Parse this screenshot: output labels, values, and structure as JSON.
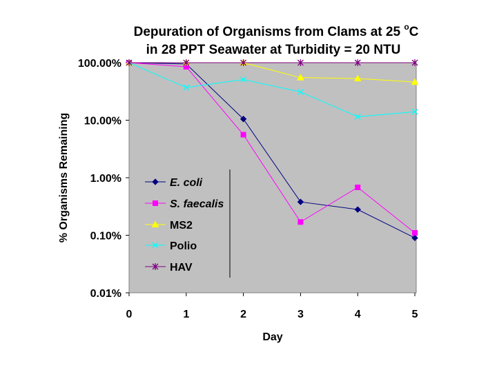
{
  "chart_data": {
    "type": "line",
    "title_line1": "Depuration of Organisms from Clams at 25 ",
    "title_degree": "o",
    "title_unit": "C",
    "title_line2": "in 28 PPT Seawater at Turbidity = 20 NTU",
    "xlabel": "Day",
    "ylabel": "% Organisms Remaining",
    "x": [
      0,
      1,
      2,
      3,
      4,
      5
    ],
    "y_scale": "log",
    "ylim": [
      0.01,
      100
    ],
    "y_ticks": [
      {
        "value": 100,
        "label": "100.00%"
      },
      {
        "value": 10,
        "label": "10.00%"
      },
      {
        "value": 1,
        "label": "1.00%"
      },
      {
        "value": 0.1,
        "label": "0.10%"
      },
      {
        "value": 0.01,
        "label": "0.01%"
      }
    ],
    "x_tick_labels": [
      "0",
      "1",
      "2",
      "3",
      "4",
      "5"
    ],
    "plot_background": "#c0c0c0",
    "series": [
      {
        "name": "E. coli",
        "italic": true,
        "color": "#000080",
        "marker": "diamond",
        "values": [
          100,
          95,
          10.5,
          0.38,
          0.28,
          0.09
        ]
      },
      {
        "name": "S. faecalis",
        "italic": true,
        "color": "#ff00ff",
        "marker": "square",
        "values": [
          100,
          85,
          5.6,
          0.17,
          0.68,
          0.11
        ]
      },
      {
        "name": "MS2",
        "italic": false,
        "color": "#ffff00",
        "marker": "triangle",
        "values": [
          100,
          100,
          100,
          55,
          53,
          46
        ]
      },
      {
        "name": "Polio",
        "italic": false,
        "color": "#00ffff",
        "marker": "x",
        "values": [
          100,
          37,
          51,
          31,
          11.5,
          14
        ]
      },
      {
        "name": "HAV",
        "italic": false,
        "color": "#800080",
        "marker": "star",
        "values": [
          100,
          100,
          100,
          100,
          100,
          100
        ]
      }
    ]
  }
}
